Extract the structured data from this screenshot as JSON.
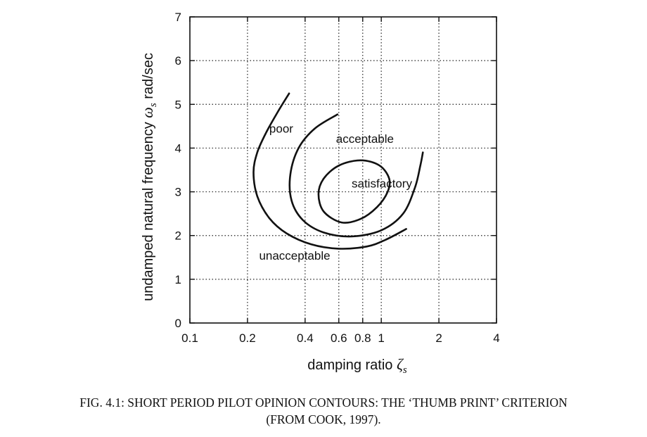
{
  "chart_data": {
    "type": "line",
    "title": "",
    "xlabel": {
      "text": "damping ratio ",
      "symbol": "ζ",
      "subscript": "s"
    },
    "ylabel": {
      "text": "undamped natural frequency ",
      "symbol": "ω",
      "subscript": "s",
      "unit": " rad/sec"
    },
    "x_scale": "log",
    "xlim": [
      0.1,
      4
    ],
    "ylim": [
      0,
      7
    ],
    "x_ticks": [
      0.1,
      0.2,
      0.4,
      0.6,
      0.8,
      1,
      2,
      4
    ],
    "x_tick_labels": [
      "0.1",
      "0.2",
      "0.4",
      "0.6",
      "0.8",
      "1",
      "2",
      "4"
    ],
    "y_ticks": [
      0,
      1,
      2,
      3,
      4,
      5,
      6,
      7
    ],
    "y_tick_labels": [
      "0",
      "1",
      "2",
      "3",
      "4",
      "5",
      "6",
      "7"
    ],
    "grid": true,
    "grid_style": "dotted",
    "series": [
      {
        "name": "poor",
        "points": [
          [
            0.33,
            5.25
          ],
          [
            0.29,
            4.85
          ],
          [
            0.25,
            4.35
          ],
          [
            0.225,
            3.9
          ],
          [
            0.215,
            3.45
          ],
          [
            0.225,
            2.9
          ],
          [
            0.26,
            2.4
          ],
          [
            0.32,
            2.05
          ],
          [
            0.43,
            1.8
          ],
          [
            0.6,
            1.7
          ],
          [
            0.84,
            1.75
          ],
          [
            1.05,
            1.9
          ],
          [
            1.35,
            2.15
          ]
        ]
      },
      {
        "name": "acceptable",
        "points": [
          [
            0.59,
            4.77
          ],
          [
            0.45,
            4.45
          ],
          [
            0.37,
            4.0
          ],
          [
            0.335,
            3.4
          ],
          [
            0.34,
            2.8
          ],
          [
            0.39,
            2.35
          ],
          [
            0.5,
            2.07
          ],
          [
            0.7,
            1.98
          ],
          [
            1.0,
            2.12
          ],
          [
            1.3,
            2.5
          ],
          [
            1.5,
            3.1
          ],
          [
            1.6,
            3.6
          ],
          [
            1.65,
            3.9
          ]
        ]
      },
      {
        "name": "satisfactory",
        "closed": true,
        "points": [
          [
            0.62,
            2.3
          ],
          [
            0.78,
            2.38
          ],
          [
            0.95,
            2.65
          ],
          [
            1.08,
            3.0
          ],
          [
            1.1,
            3.3
          ],
          [
            0.98,
            3.6
          ],
          [
            0.78,
            3.72
          ],
          [
            0.6,
            3.6
          ],
          [
            0.5,
            3.3
          ],
          [
            0.47,
            2.95
          ],
          [
            0.5,
            2.55
          ]
        ]
      }
    ],
    "annotations": [
      {
        "text": "poor",
        "x": 0.26,
        "y": 4.35
      },
      {
        "text": "acceptable",
        "x": 0.58,
        "y": 4.12
      },
      {
        "text": "satisfactory",
        "x": 0.7,
        "y": 3.1
      },
      {
        "text": "unacceptable",
        "x": 0.23,
        "y": 1.45
      }
    ]
  },
  "caption": {
    "line1": "FIG. 4.1: SHORT PERIOD PILOT OPINION CONTOURS: THE ‘THUMB PRINT’ CRITERION",
    "line2": "(FROM COOK, 1997)."
  }
}
